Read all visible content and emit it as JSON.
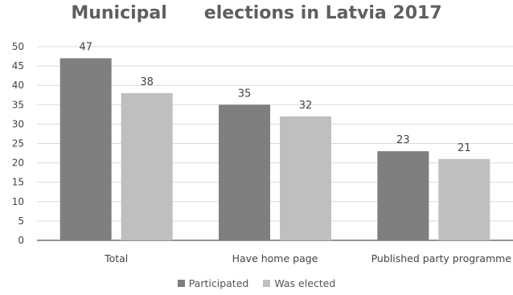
{
  "chart_data": {
    "type": "bar",
    "title": "Municipal      elections in Latvia 2017",
    "categories": [
      "Total",
      "Have home page",
      "Published party programme"
    ],
    "series": [
      {
        "name": "Participated",
        "values": [
          47,
          35,
          23
        ],
        "color": "#7f7f7f"
      },
      {
        "name": "Was elected",
        "values": [
          38,
          32,
          21
        ],
        "color": "#bfbfbf"
      }
    ],
    "ylim": [
      0,
      50
    ],
    "yticks": [
      0,
      5,
      10,
      15,
      20,
      25,
      30,
      35,
      40,
      45,
      50
    ],
    "grid": true,
    "legend": "bottom"
  }
}
